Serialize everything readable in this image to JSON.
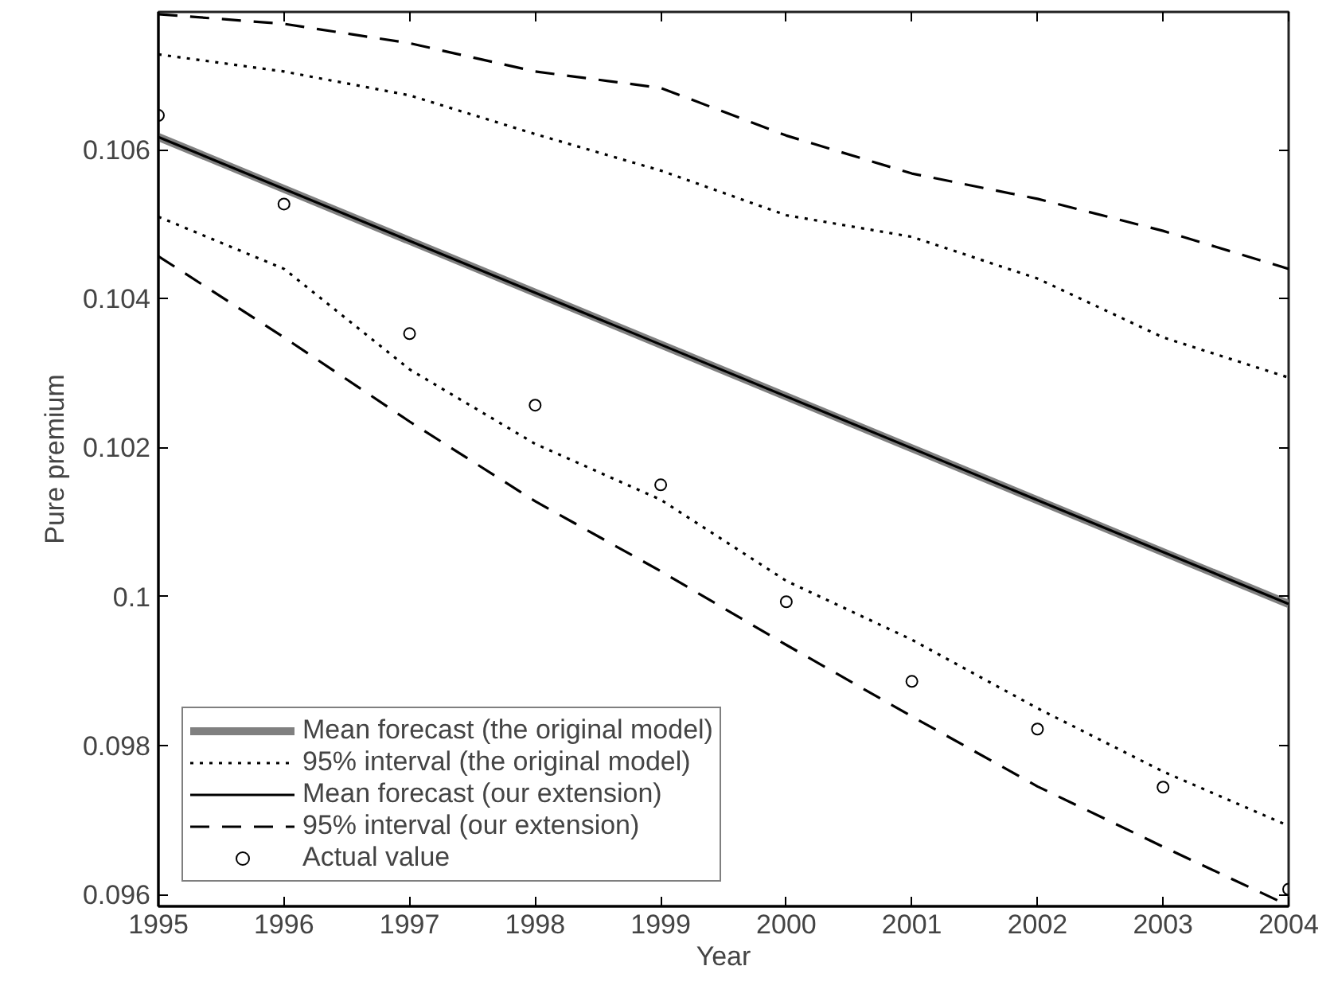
{
  "chart_data": {
    "type": "line",
    "xlabel": "Year",
    "ylabel": "Pure premium",
    "xlim": [
      1995,
      2004
    ],
    "ylim": [
      0.09584,
      0.10785
    ],
    "xticks": [
      1995,
      1996,
      1997,
      1998,
      1999,
      2000,
      2001,
      2002,
      2003,
      2004
    ],
    "yticks": [
      0.096,
      0.098,
      {
        "value": 0.1,
        "label": "0.1"
      },
      0.102,
      0.104,
      0.106
    ],
    "grid": false,
    "legend": "bottom left",
    "series": [
      {
        "name": "Mean forecast (the original model)",
        "color": "#808080",
        "line_style": "solid",
        "x": [
          1995,
          2004
        ],
        "values": [
          0.10617,
          0.0999
        ]
      },
      {
        "name": "95% interval (the original model)",
        "color": "#000000",
        "line_style": "dotted",
        "x": [
          1995,
          1996,
          1997,
          1998,
          1999,
          2000,
          2001,
          2002,
          2003,
          2004
        ],
        "values": [
          0.10728,
          0.10705,
          0.10673,
          0.10621,
          0.10572,
          0.10512,
          0.10483,
          0.10427,
          0.10348,
          0.10294
        ]
      },
      {
        "color": "#000000",
        "line_style": "dotted",
        "x": [
          1995,
          1996,
          1997,
          1998,
          1999,
          2000,
          2001,
          2002,
          2003,
          2004
        ],
        "values": [
          0.1051,
          0.1044,
          0.10305,
          0.10205,
          0.1013,
          0.10021,
          0.09942,
          0.0985,
          0.09765,
          0.09692
        ]
      },
      {
        "name": "Mean forecast (our extension)",
        "color": "#000000",
        "line_style": "solid",
        "x": [
          1995,
          2004
        ],
        "values": [
          0.10617,
          0.0999
        ]
      },
      {
        "name": "95% interval (our extension)",
        "color": "#000000",
        "line_style": "dashed",
        "x": [
          1995,
          1996,
          1997,
          1998,
          1999,
          2000,
          2001,
          2002,
          2003,
          2004
        ],
        "values": [
          0.10782,
          0.10769,
          0.10743,
          0.10705,
          0.10683,
          0.10619,
          0.10568,
          0.10534,
          0.10491,
          0.1044
        ]
      },
      {
        "color": "#000000",
        "line_style": "dashed",
        "x": [
          1995,
          1996,
          1997,
          1998,
          1999,
          2000,
          2001,
          2002,
          2003,
          2004
        ],
        "values": [
          0.10457,
          0.10348,
          0.10235,
          0.10128,
          0.10034,
          0.09935,
          0.09839,
          0.09745,
          0.09664,
          0.09585
        ]
      },
      {
        "name": "Actual value",
        "type": "scatter",
        "marker": "circle",
        "color": "#000000",
        "x": [
          1995,
          1996,
          1997,
          1998,
          1999,
          2000,
          2001,
          2002,
          2003,
          2004
        ],
        "values": [
          0.10646,
          0.10527,
          0.10353,
          0.10257,
          0.1015,
          0.09993,
          0.09886,
          0.09822,
          0.09744,
          0.09607
        ]
      }
    ]
  }
}
